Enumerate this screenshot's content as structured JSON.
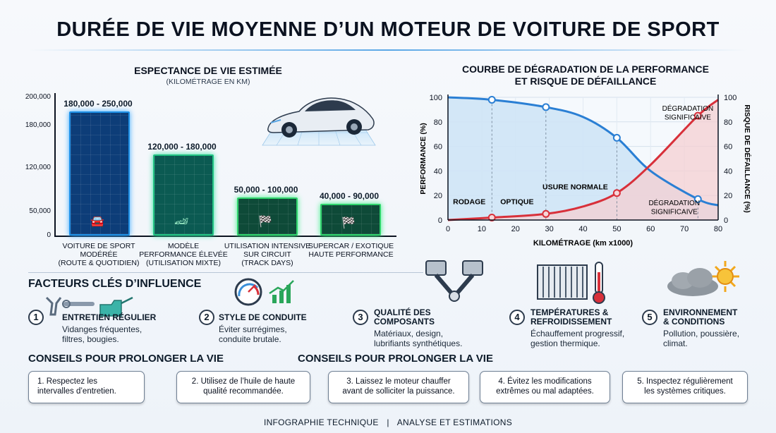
{
  "title": "DURÉE DE VIE MOYENNE D’UN MOTEUR DE VOITURE DE SPORT",
  "bar_chart": {
    "title": "ESPECTANCE DE VIE ESTIMÉE",
    "subtitle": "(KILOMÉTRAGE EN KM)",
    "y_ticks": [
      "200,000",
      "180,000",
      "120,000",
      "50,000",
      "0"
    ],
    "bars": [
      {
        "range": "180,000 - 250,000",
        "caption": [
          "VOITURE DE SPORT",
          "MODÉRÉE",
          "(ROUTE & QUOTIDIEN)"
        ],
        "color": "#1e90e6",
        "icon": "sedan-icon"
      },
      {
        "range": "120,000 - 180,000",
        "caption": [
          "MODÈLE",
          "PERFORMANCE ÉLEVÉE",
          "(UTILISATION MIXTE)"
        ],
        "color": "#22c483",
        "icon": "sports-car-icon"
      },
      {
        "range": "50,000 - 100,000",
        "caption": [
          "UTILISATION INTENSIVE",
          "SUR CIRCUIT",
          "(TRACK DAYS)"
        ],
        "color": "#2fd36b",
        "icon": "racing-flags-icon"
      },
      {
        "range": "40,000 - 90,000",
        "caption": [
          "SUPERCAR / EXOTIQUE",
          "HAUTE PERFORMANCE"
        ],
        "color": "#2fd36b",
        "icon": "racing-flags-icon"
      }
    ]
  },
  "chart_data": {
    "type": "line",
    "title": "COURBE DE DÉGRADATION DE LA PERFORMANCE ET RISQUE DE DÉFAILLANCE",
    "xlabel": "KILOMÉTRAGE (km x1000)",
    "ylabel": "PERFORMANCE (%)",
    "y2label": "RISQUE DE DÉFAILLANCE (%)",
    "xlim": [
      0,
      80
    ],
    "ylim": [
      0,
      100
    ],
    "x_ticks": [
      "0",
      "10",
      "20",
      "30",
      "40",
      "50",
      "60",
      "70",
      "80"
    ],
    "y_ticks": [
      "100",
      "80",
      "60",
      "40",
      "20",
      "0"
    ],
    "series": [
      {
        "name": "PERFORMANCE (%)",
        "color": "#2a7fd4",
        "fill": "#cfe4f6",
        "x": [
          0,
          13,
          29,
          40,
          50,
          60,
          74,
          80
        ],
        "y": [
          100,
          98,
          92,
          84,
          67,
          40,
          17,
          12
        ]
      },
      {
        "name": "RISQUE DE DÉFAILLANCE (%)",
        "color": "#d8303a",
        "fill": "#f4cfd1",
        "x": [
          0,
          13,
          29,
          40,
          50,
          60,
          74,
          80
        ],
        "y": [
          0,
          2,
          5,
          11,
          22,
          45,
          85,
          98
        ]
      }
    ],
    "markers": [
      {
        "series": 0,
        "x": 13,
        "y": 98
      },
      {
        "series": 0,
        "x": 29,
        "y": 92
      },
      {
        "series": 0,
        "x": 50,
        "y": 67
      },
      {
        "series": 0,
        "x": 74,
        "y": 17
      },
      {
        "series": 1,
        "x": 13,
        "y": 2
      },
      {
        "series": 1,
        "x": 29,
        "y": 5
      },
      {
        "series": 1,
        "x": 50,
        "y": 22
      },
      {
        "series": 1,
        "x": 74,
        "y": 85
      }
    ],
    "annotations": {
      "rodage": "RODAGE",
      "optique": "OPTIQUE",
      "usure": "USURE NORMALE",
      "degr_top": [
        "DÉGRADATION",
        "SIGNIFICAIVE"
      ],
      "degr_bottom": [
        "DÉGRADATION",
        "SIGNIFICAIVE"
      ]
    }
  },
  "factors": {
    "title": "FACTEURS CLÉS D’INFLUENCE",
    "items": [
      {
        "num": "1",
        "head": [
          "ENTRETIEN RÉGULIER"
        ],
        "desc": [
          "Vidanges fréquentes,",
          "filtres, bougies."
        ],
        "icon": "wrench-oilcan-icon"
      },
      {
        "num": "2",
        "head": [
          "STYLE DE CONDUITE"
        ],
        "desc": [
          "Éviter surrégimes,",
          "conduite brutale."
        ],
        "icon": "gauge-icon"
      },
      {
        "num": "3",
        "head": [
          "QUALITÉ DES",
          "COMPOSANTS"
        ],
        "desc": [
          "Matériaux, design,",
          "lubrifiants synthétiques."
        ],
        "icon": "pistons-icon"
      },
      {
        "num": "4",
        "head": [
          "TEMPÉRATURES &",
          "REFROIDISSEMENT"
        ],
        "desc": [
          "Échauffement progressif,",
          "gestion thermique."
        ],
        "icon": "radiator-icon"
      },
      {
        "num": "5",
        "head": [
          "ENVIRONNEMENT",
          "& CONDITIONS"
        ],
        "desc": [
          "Pollution, poussière,",
          "climat."
        ],
        "icon": "weather-icon"
      }
    ]
  },
  "tips": {
    "title_left": "CONSEILS POUR PROLONGER LA VIE",
    "title_right": "CONSEILS POUR PROLONGER LA VIE",
    "items": [
      [
        "1. Respectez les",
        "intervalles d’entretien."
      ],
      [
        "2. Utilisez de l’huile de haute",
        "qualité recommandée."
      ],
      [
        "3. Laissez le moteur chauffer",
        "avant de solliciter la puissance."
      ],
      [
        "4. Évitez les modifications",
        "extrêmes ou mal adaptées."
      ],
      [
        "5. Inspectez régulièrement",
        "les systèmes critiques."
      ]
    ]
  },
  "footer": {
    "left": "INFOGRAPHIE TECHNIQUE",
    "sep": "|",
    "right": "ANALYSE ET ESTIMATIONS"
  }
}
